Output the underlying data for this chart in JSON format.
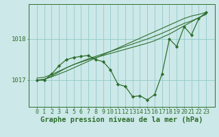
{
  "x": [
    0,
    1,
    2,
    3,
    4,
    5,
    6,
    7,
    8,
    9,
    10,
    11,
    12,
    13,
    14,
    15,
    16,
    17,
    18,
    19,
    20,
    21,
    22,
    23
  ],
  "line_main": [
    1017.0,
    1017.0,
    1017.15,
    1017.35,
    1017.5,
    1017.55,
    1017.58,
    1017.6,
    1017.5,
    1017.45,
    1017.25,
    1016.9,
    1016.85,
    1016.6,
    1016.62,
    1016.52,
    1016.65,
    1017.15,
    1018.0,
    1017.82,
    1018.3,
    1018.1,
    1018.5,
    1018.65
  ],
  "line_smooth1": [
    1017.0,
    1017.02,
    1017.08,
    1017.15,
    1017.22,
    1017.3,
    1017.38,
    1017.46,
    1017.54,
    1017.62,
    1017.7,
    1017.78,
    1017.86,
    1017.94,
    1018.02,
    1018.1,
    1018.18,
    1018.26,
    1018.34,
    1018.42,
    1018.5,
    1018.56,
    1018.6,
    1018.65
  ],
  "line_smooth2": [
    1017.05,
    1017.07,
    1017.14,
    1017.22,
    1017.3,
    1017.38,
    1017.45,
    1017.52,
    1017.58,
    1017.64,
    1017.7,
    1017.76,
    1017.82,
    1017.88,
    1017.94,
    1018.0,
    1018.07,
    1018.14,
    1018.22,
    1018.3,
    1018.38,
    1018.44,
    1018.52,
    1018.6
  ],
  "line_smooth3": [
    1017.0,
    1017.02,
    1017.1,
    1017.2,
    1017.3,
    1017.38,
    1017.44,
    1017.5,
    1017.55,
    1017.6,
    1017.65,
    1017.7,
    1017.75,
    1017.8,
    1017.85,
    1017.9,
    1017.96,
    1018.04,
    1018.12,
    1018.22,
    1018.32,
    1018.42,
    1018.52,
    1018.62
  ],
  "ylim": [
    1016.35,
    1018.85
  ],
  "yticks": [
    1017.0,
    1018.0
  ],
  "xticks": [
    0,
    1,
    2,
    3,
    4,
    5,
    6,
    7,
    8,
    9,
    10,
    11,
    12,
    13,
    14,
    15,
    16,
    17,
    18,
    19,
    20,
    21,
    22,
    23
  ],
  "line_color": "#2d6e2d",
  "bg_color": "#cce8e8",
  "grid_color": "#88c4c4",
  "xlabel": "Graphe pression niveau de la mer (hPa)",
  "xlabel_fontsize": 7.5,
  "tick_fontsize": 6.0
}
